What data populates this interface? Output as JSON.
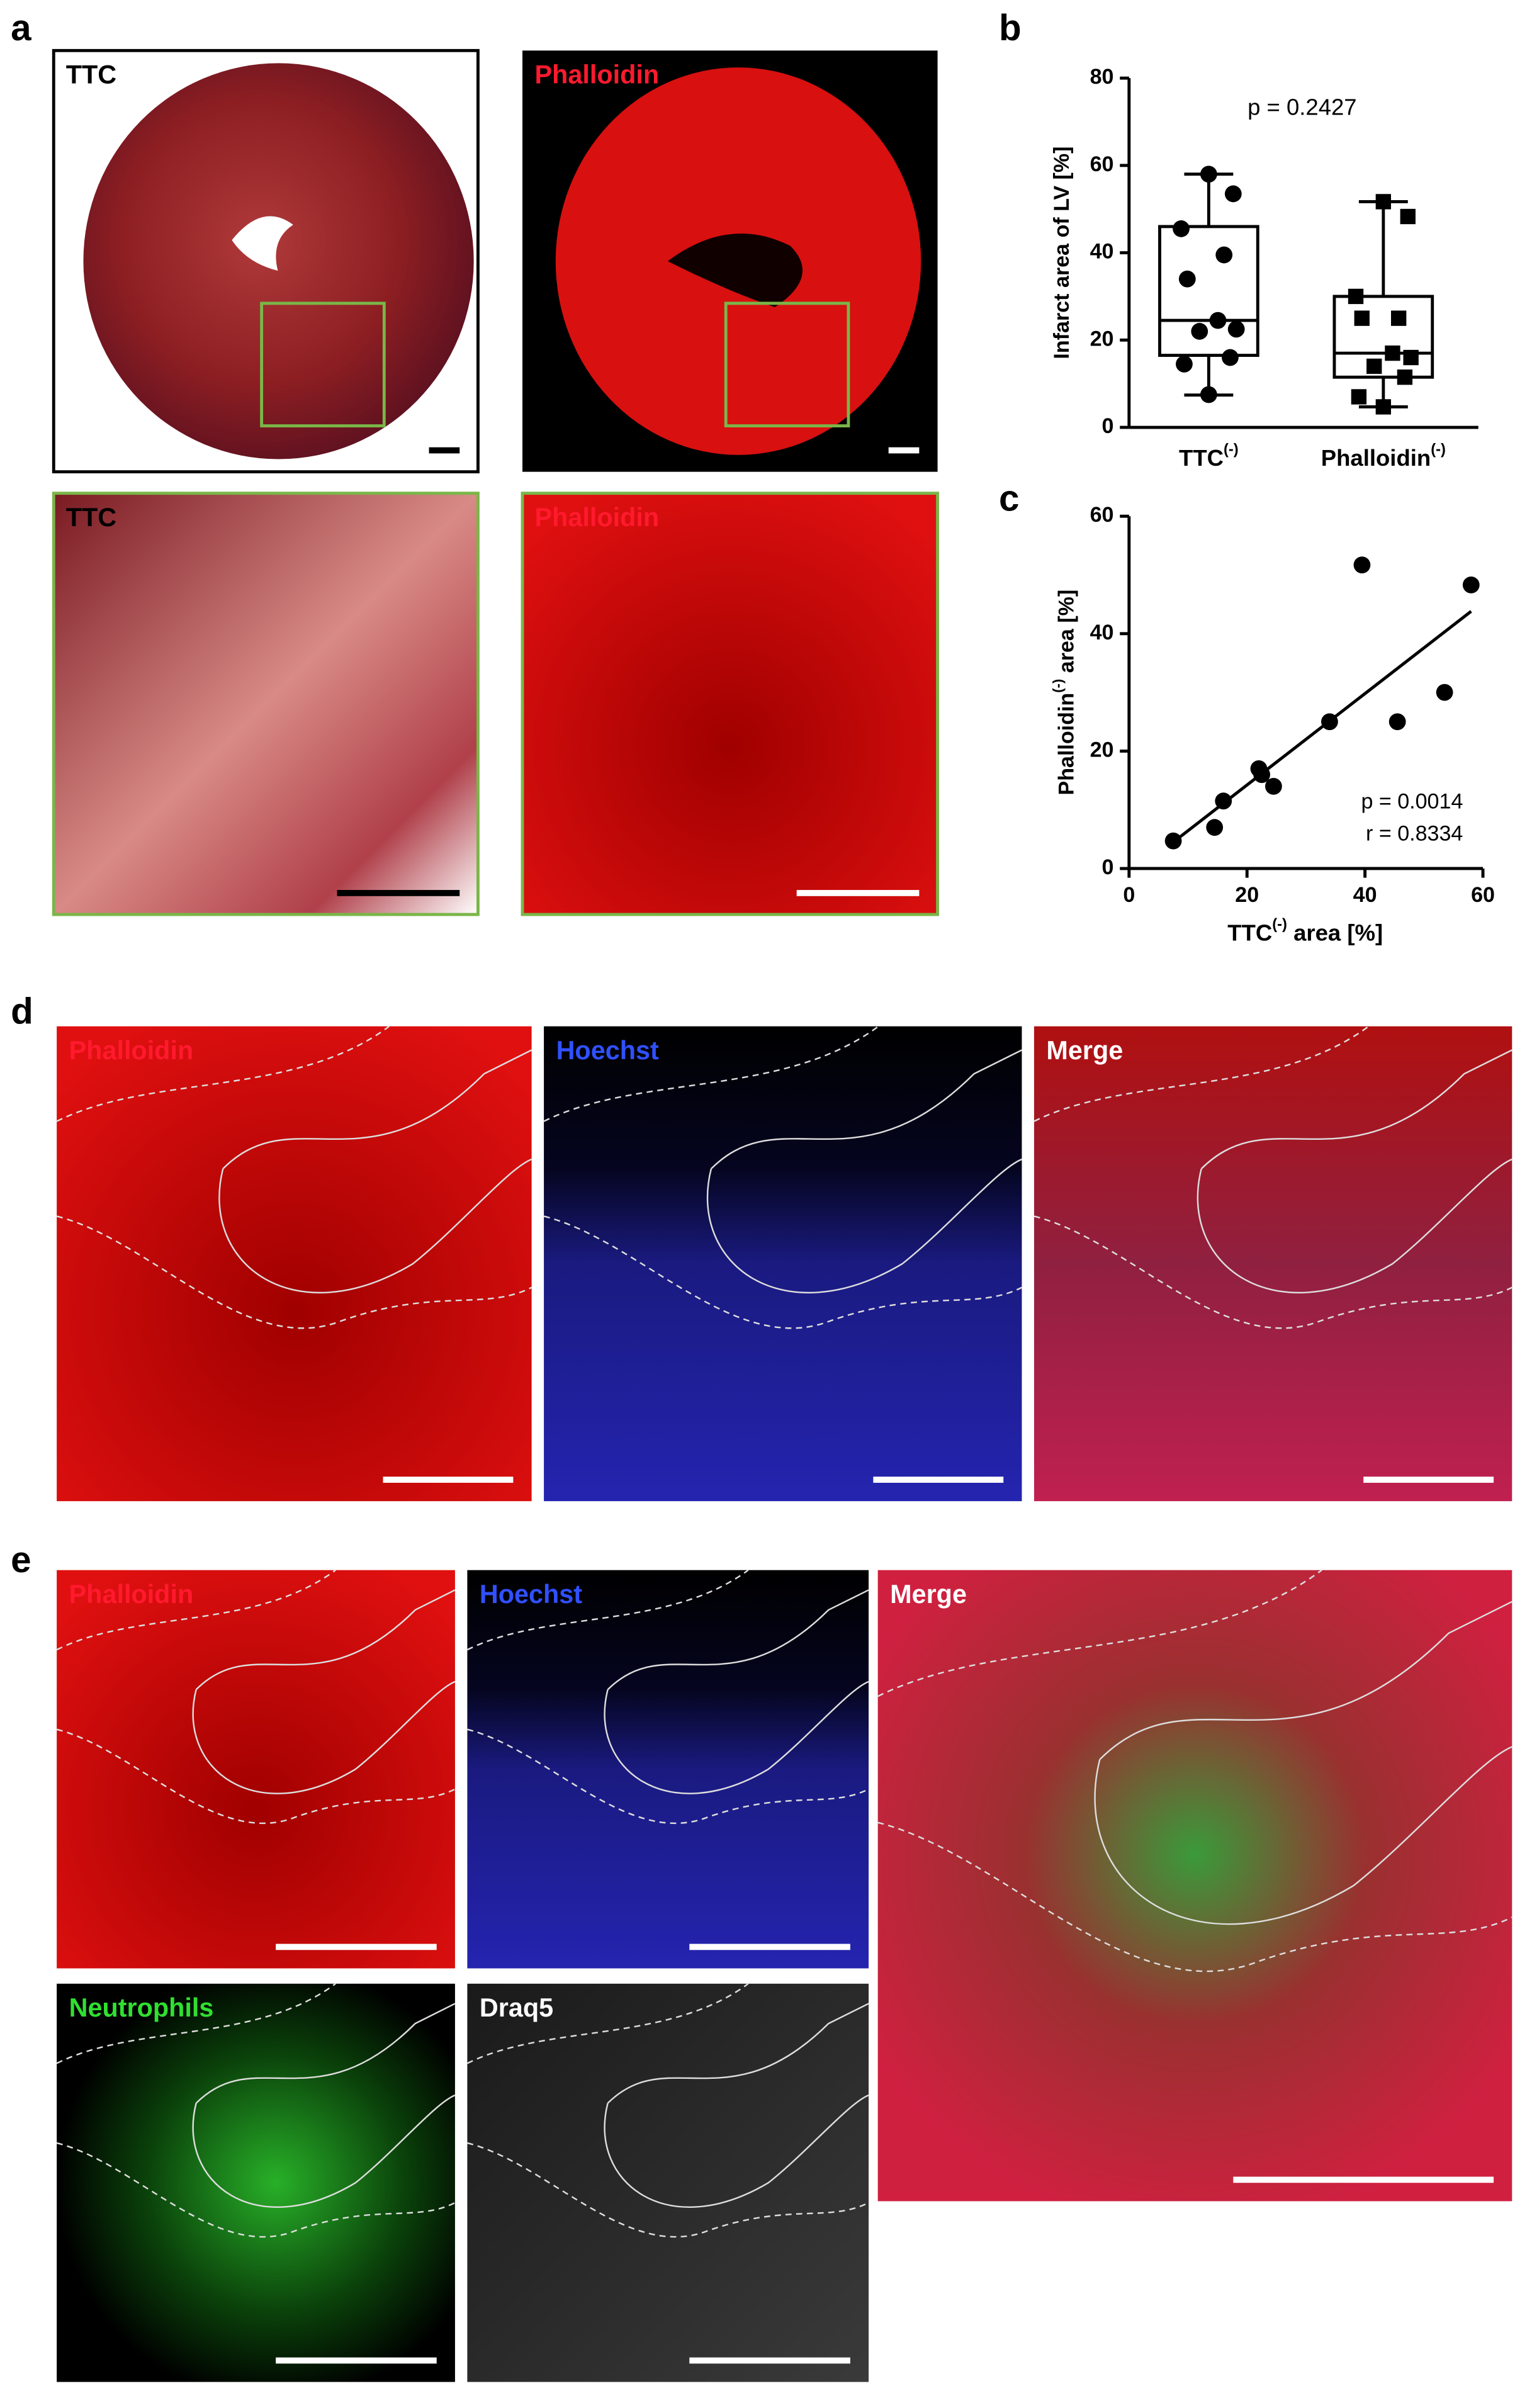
{
  "panel_labels": [
    "a",
    "b",
    "c",
    "d",
    "e"
  ],
  "images": {
    "a": [
      "TTC",
      "Phalloidin",
      "TTC",
      "Phalloidin"
    ],
    "d": [
      "Phalloidin",
      "Hoechst",
      "Merge"
    ],
    "e": [
      "Phalloidin",
      "Hoechst",
      "Merge",
      "Neutrophils",
      "Draq5"
    ]
  },
  "chart_data": [
    {
      "type": "box",
      "ylabel": "Infarct area of LV [%]",
      "annotation": "p = 0.2427",
      "categories": [
        {
          "text": "TTC",
          "sup": "(-)"
        },
        {
          "text": "Phalloidin",
          "sup": "(-)"
        }
      ],
      "ylim": [
        0,
        80
      ],
      "yticks": [
        0,
        20,
        40,
        60,
        80
      ],
      "boxes": [
        {
          "marker": "circle",
          "color": "#000000",
          "min": 7.4,
          "q1": 16.5,
          "median": 24.5,
          "q3": 46,
          "max": 58,
          "points": [
            7.5,
            14.5,
            16,
            22,
            22.5,
            24.5,
            34,
            39.5,
            45.5,
            53.5,
            58
          ]
        },
        {
          "marker": "square",
          "color": "#000000",
          "min": 4.7,
          "q1": 11.5,
          "median": 17,
          "q3": 30,
          "max": 51.7,
          "points": [
            4.7,
            7,
            11.5,
            14,
            16,
            17,
            25,
            25,
            30,
            48.3,
            51.7
          ]
        }
      ]
    },
    {
      "type": "scatter",
      "xlabel": {
        "text": "TTC",
        "sup": "(-)",
        "rest": " area [%]"
      },
      "ylabel": {
        "text": "Phalloidin",
        "sup": "(-)",
        "rest": " area [%]"
      },
      "x": [
        7.5,
        14.5,
        16,
        22,
        22.5,
        24.5,
        34,
        39.5,
        45.5,
        53.5,
        58
      ],
      "y": [
        4.7,
        7,
        11.5,
        17,
        16,
        14,
        25,
        51.7,
        25,
        30,
        48.3
      ],
      "color": "#000000",
      "xlim": [
        0,
        60
      ],
      "ylim": [
        0,
        60
      ],
      "xticks": [
        0,
        20,
        40,
        60
      ],
      "yticks": [
        0,
        20,
        40,
        60
      ],
      "fit": {
        "x": [
          7.5,
          58
        ],
        "y": [
          4.5,
          43.8
        ]
      },
      "annotations": [
        "p = 0.0014",
        "r = 0.8334"
      ]
    }
  ]
}
